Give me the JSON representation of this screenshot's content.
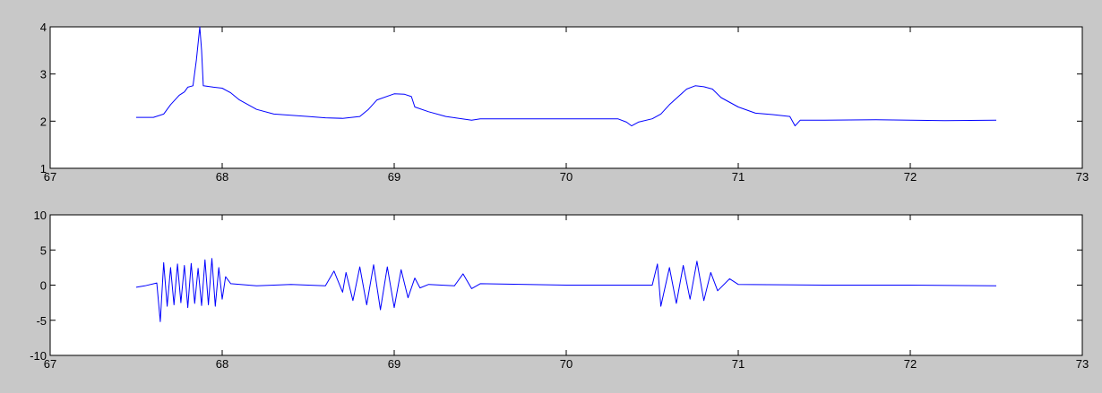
{
  "chart_data": [
    {
      "type": "line",
      "title": "",
      "xlabel": "",
      "ylabel": "",
      "xlim": [
        67,
        73
      ],
      "ylim": [
        1,
        4
      ],
      "x_ticks": [
        67,
        68,
        69,
        70,
        71,
        72,
        73
      ],
      "y_ticks": [
        1,
        2,
        3,
        4
      ],
      "grid": false,
      "series_color": "#0000ff",
      "series": [
        {
          "points": [
            [
              67.5,
              2.08
            ],
            [
              67.6,
              2.08
            ],
            [
              67.66,
              2.15
            ],
            [
              67.7,
              2.35
            ],
            [
              67.75,
              2.55
            ],
            [
              67.78,
              2.62
            ],
            [
              67.8,
              2.72
            ],
            [
              67.83,
              2.75
            ],
            [
              67.85,
              3.3
            ],
            [
              67.87,
              4.0
            ],
            [
              67.88,
              3.5
            ],
            [
              67.89,
              2.75
            ],
            [
              67.95,
              2.72
            ],
            [
              68.0,
              2.7
            ],
            [
              68.05,
              2.6
            ],
            [
              68.1,
              2.45
            ],
            [
              68.2,
              2.25
            ],
            [
              68.3,
              2.15
            ],
            [
              68.5,
              2.1
            ],
            [
              68.6,
              2.07
            ],
            [
              68.7,
              2.06
            ],
            [
              68.8,
              2.1
            ],
            [
              68.85,
              2.25
            ],
            [
              68.9,
              2.45
            ],
            [
              69.0,
              2.58
            ],
            [
              69.06,
              2.57
            ],
            [
              69.1,
              2.52
            ],
            [
              69.12,
              2.3
            ],
            [
              69.2,
              2.2
            ],
            [
              69.3,
              2.1
            ],
            [
              69.45,
              2.02
            ],
            [
              69.5,
              2.05
            ],
            [
              70.0,
              2.05
            ],
            [
              70.3,
              2.05
            ],
            [
              70.35,
              1.98
            ],
            [
              70.38,
              1.9
            ],
            [
              70.42,
              1.98
            ],
            [
              70.5,
              2.05
            ],
            [
              70.55,
              2.15
            ],
            [
              70.6,
              2.35
            ],
            [
              70.7,
              2.68
            ],
            [
              70.75,
              2.75
            ],
            [
              70.8,
              2.73
            ],
            [
              70.85,
              2.68
            ],
            [
              70.9,
              2.5
            ],
            [
              71.0,
              2.3
            ],
            [
              71.1,
              2.17
            ],
            [
              71.2,
              2.14
            ],
            [
              71.3,
              2.1
            ],
            [
              71.33,
              1.9
            ],
            [
              71.36,
              2.02
            ],
            [
              71.5,
              2.02
            ],
            [
              71.8,
              2.03
            ],
            [
              72.0,
              2.02
            ],
            [
              72.2,
              2.01
            ],
            [
              72.5,
              2.02
            ]
          ]
        }
      ]
    },
    {
      "type": "line",
      "title": "",
      "xlabel": "",
      "ylabel": "",
      "xlim": [
        67,
        73
      ],
      "ylim": [
        -10,
        10
      ],
      "x_ticks": [
        67,
        68,
        69,
        70,
        71,
        72,
        73
      ],
      "y_ticks": [
        -10,
        -5,
        0,
        5,
        10
      ],
      "grid": false,
      "series_color": "#0000ff",
      "series": [
        {
          "points": [
            [
              67.5,
              -0.3
            ],
            [
              67.55,
              -0.1
            ],
            [
              67.62,
              0.3
            ],
            [
              67.64,
              -5.2
            ],
            [
              67.66,
              3.2
            ],
            [
              67.68,
              -3.0
            ],
            [
              67.7,
              2.5
            ],
            [
              67.72,
              -2.8
            ],
            [
              67.74,
              3.0
            ],
            [
              67.76,
              -2.5
            ],
            [
              67.78,
              2.8
            ],
            [
              67.8,
              -3.2
            ],
            [
              67.82,
              3.1
            ],
            [
              67.84,
              -2.6
            ],
            [
              67.86,
              2.4
            ],
            [
              67.88,
              -2.9
            ],
            [
              67.9,
              3.6
            ],
            [
              67.92,
              -2.8
            ],
            [
              67.94,
              3.8
            ],
            [
              67.96,
              -3.0
            ],
            [
              67.98,
              2.5
            ],
            [
              68.0,
              -2.0
            ],
            [
              68.02,
              1.2
            ],
            [
              68.05,
              0.2
            ],
            [
              68.2,
              -0.1
            ],
            [
              68.4,
              0.1
            ],
            [
              68.6,
              -0.1
            ],
            [
              68.65,
              2.0
            ],
            [
              68.7,
              -1.0
            ],
            [
              68.72,
              1.8
            ],
            [
              68.76,
              -2.2
            ],
            [
              68.8,
              2.6
            ],
            [
              68.84,
              -2.8
            ],
            [
              68.88,
              2.9
            ],
            [
              68.92,
              -3.5
            ],
            [
              68.96,
              2.6
            ],
            [
              69.0,
              -3.2
            ],
            [
              69.04,
              2.2
            ],
            [
              69.08,
              -1.8
            ],
            [
              69.12,
              1.0
            ],
            [
              69.15,
              -0.4
            ],
            [
              69.2,
              0.1
            ],
            [
              69.35,
              -0.1
            ],
            [
              69.4,
              1.6
            ],
            [
              69.45,
              -0.5
            ],
            [
              69.5,
              0.2
            ],
            [
              70.0,
              0.0
            ],
            [
              70.5,
              0.0
            ],
            [
              70.53,
              3.0
            ],
            [
              70.55,
              -3.0
            ],
            [
              70.6,
              2.5
            ],
            [
              70.64,
              -2.6
            ],
            [
              70.68,
              2.8
            ],
            [
              70.72,
              -2.0
            ],
            [
              70.76,
              3.4
            ],
            [
              70.8,
              -2.2
            ],
            [
              70.84,
              1.8
            ],
            [
              70.88,
              -0.8
            ],
            [
              70.95,
              0.9
            ],
            [
              71.0,
              0.1
            ],
            [
              71.5,
              0.0
            ],
            [
              72.0,
              0.0
            ],
            [
              72.5,
              -0.1
            ]
          ]
        }
      ]
    }
  ]
}
